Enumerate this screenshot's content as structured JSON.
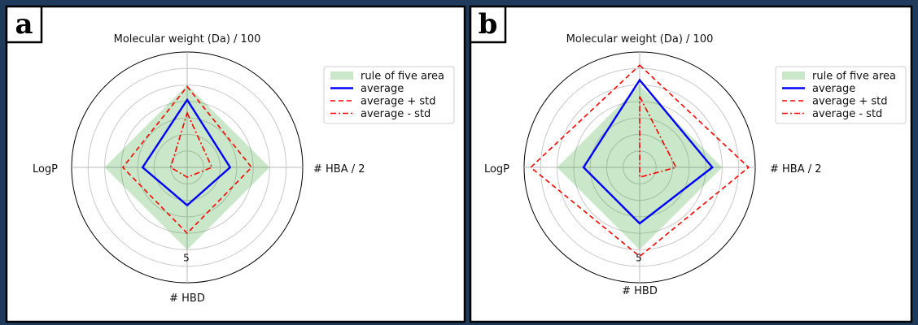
{
  "chart_data": [
    {
      "panel_letter": "a",
      "type": "radar",
      "axes": [
        "Molecular weight (Da) / 100",
        "# HBA / 2",
        "# HBD",
        "LogP"
      ],
      "rlim": [
        0,
        7
      ],
      "ring_values": [
        1,
        2,
        3,
        4,
        5,
        6,
        7
      ],
      "tick_labels": [
        {
          "value": 5,
          "label": "5"
        }
      ],
      "grid": true,
      "legend_position": "top-right",
      "series": [
        {
          "name": "rule of five area",
          "kind": "area",
          "color": "#2ca02c",
          "values": [
            5,
            5,
            5,
            5
          ]
        },
        {
          "name": "average",
          "kind": "line",
          "color": "#0000ff",
          "dash": "solid",
          "values": [
            4.1,
            2.6,
            2.3,
            2.7
          ]
        },
        {
          "name": "average + std",
          "kind": "line",
          "color": "#ff0000",
          "dash": "dashed",
          "values": [
            4.9,
            3.9,
            4.0,
            3.9
          ]
        },
        {
          "name": "average - std",
          "kind": "line",
          "color": "#ff0000",
          "dash": "dashdot",
          "values": [
            3.3,
            1.5,
            0.6,
            1.0
          ]
        }
      ]
    },
    {
      "panel_letter": "b",
      "type": "radar",
      "axes": [
        "Molecular weight (Da) / 100",
        "# HBA / 2",
        "# HBD",
        "LogP"
      ],
      "rlim": [
        0,
        7
      ],
      "ring_values": [
        1,
        2,
        3,
        4,
        5,
        6,
        7
      ],
      "tick_labels": [
        {
          "value": 5,
          "label": "5"
        }
      ],
      "grid": true,
      "legend_position": "top-right",
      "series": [
        {
          "name": "rule of five area",
          "kind": "area",
          "color": "#2ca02c",
          "values": [
            5,
            5,
            5,
            5
          ]
        },
        {
          "name": "average",
          "kind": "line",
          "color": "#0000ff",
          "dash": "solid",
          "values": [
            5.3,
            4.4,
            3.4,
            3.4
          ]
        },
        {
          "name": "average + std",
          "kind": "line",
          "color": "#ff0000",
          "dash": "dashed",
          "values": [
            6.2,
            6.6,
            5.4,
            6.6
          ]
        },
        {
          "name": "average - std",
          "kind": "line",
          "color": "#ff0000",
          "dash": "dashdot",
          "values": [
            4.3,
            2.2,
            0.6,
            0
          ]
        }
      ]
    }
  ]
}
